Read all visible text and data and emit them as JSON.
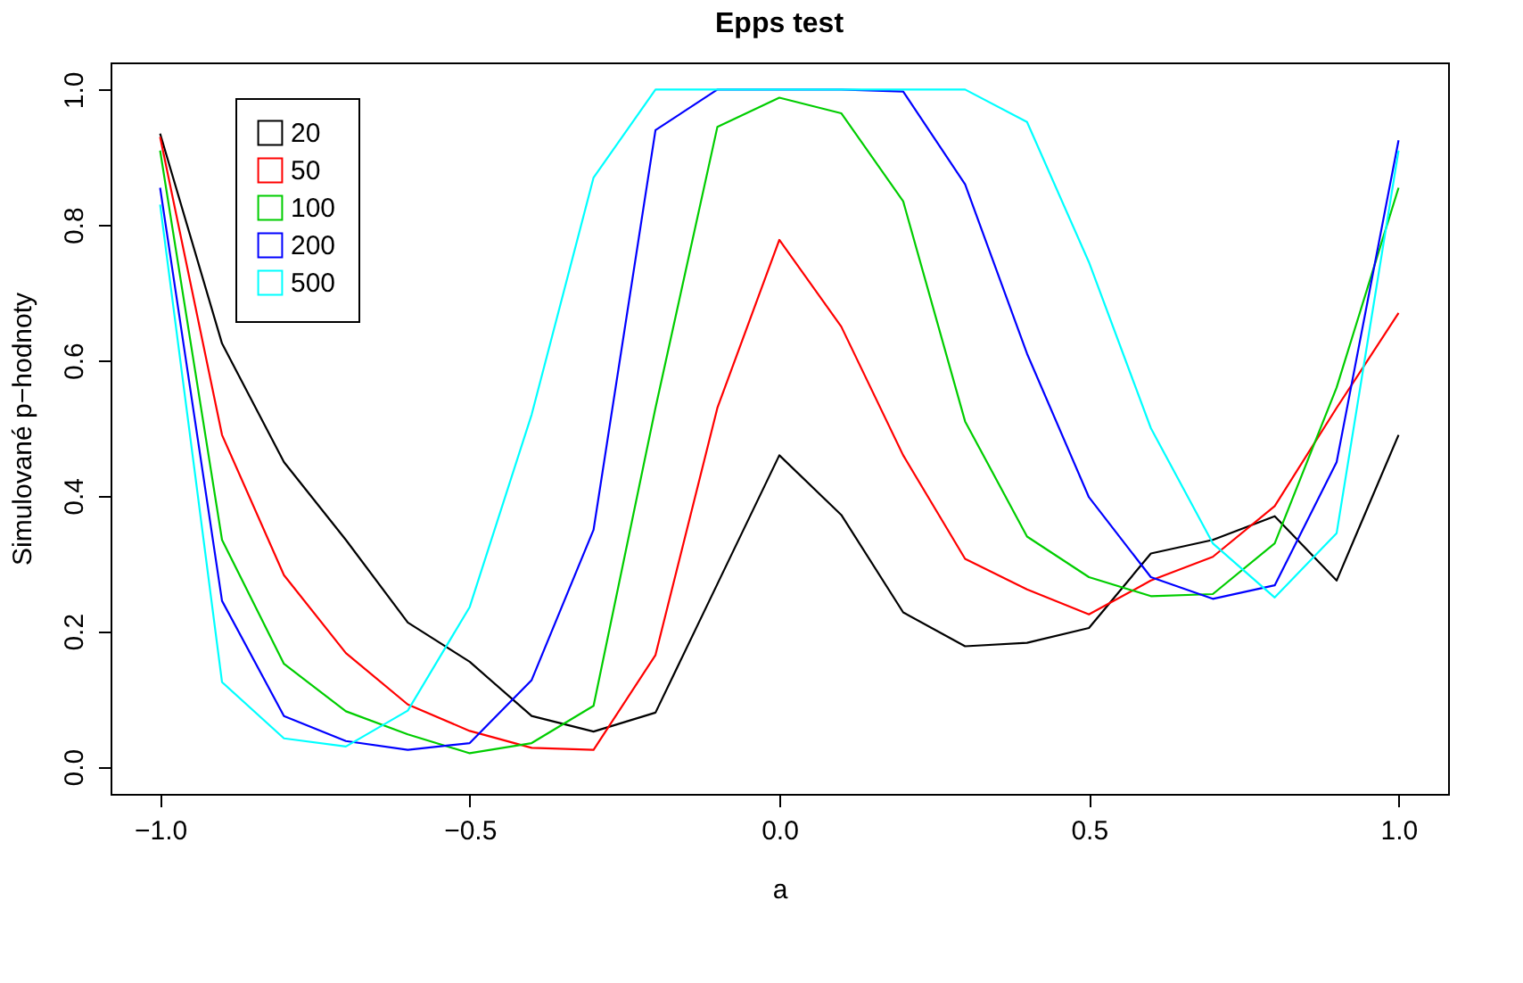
{
  "chart_data": {
    "type": "line",
    "title": "Epps test",
    "xlabel": "a",
    "ylabel": "Simulované p−hodnoty",
    "legend": "top left",
    "grid": false,
    "marker": "none",
    "line_style": "solid",
    "x": [
      -1,
      -0.9,
      -0.8,
      -0.7,
      -0.6,
      -0.5,
      -0.4,
      -0.3,
      -0.2,
      -0.1,
      0,
      0.1,
      0.2,
      0.3,
      0.4,
      0.5,
      0.6,
      0.7,
      0.8,
      0.9,
      1
    ],
    "xlim": [
      -1.08,
      1.08
    ],
    "xticks": [
      {
        "value": -1,
        "label": "−1.0"
      },
      {
        "value": -0.5,
        "label": "−0.5"
      },
      {
        "value": 0,
        "label": "0.0"
      },
      {
        "value": 0.5,
        "label": "0.5"
      },
      {
        "value": 1,
        "label": "1.0"
      }
    ],
    "ylim": [
      -0.04,
      1.04
    ],
    "yticks": [
      {
        "value": 0,
        "label": "0.0"
      },
      {
        "value": 0.2,
        "label": "0.2"
      },
      {
        "value": 0.4,
        "label": "0.4"
      },
      {
        "value": 0.6,
        "label": "0.6"
      },
      {
        "value": 0.8,
        "label": "0.8"
      },
      {
        "value": 1,
        "label": "1.0"
      }
    ],
    "series": [
      {
        "name": "20",
        "color": "#000000",
        "values": [
          0.935,
          0.625,
          0.45,
          0.335,
          0.213,
          0.155,
          0.075,
          0.052,
          0.08,
          0.27,
          0.46,
          0.372,
          0.228,
          0.178,
          0.183,
          0.205,
          0.315,
          0.335,
          0.37,
          0.275,
          0.49
        ]
      },
      {
        "name": "50",
        "color": "#ff0000",
        "values": [
          0.93,
          0.49,
          0.283,
          0.168,
          0.092,
          0.053,
          0.028,
          0.025,
          0.165,
          0.53,
          0.778,
          0.65,
          0.46,
          0.307,
          0.262,
          0.225,
          0.275,
          0.31,
          0.385,
          0.53,
          0.67
        ]
      },
      {
        "name": "100",
        "color": "#00cd00",
        "values": [
          0.91,
          0.335,
          0.152,
          0.082,
          0.048,
          0.02,
          0.035,
          0.09,
          0.53,
          0.945,
          0.988,
          0.965,
          0.835,
          0.51,
          0.34,
          0.28,
          0.252,
          0.255,
          0.33,
          0.56,
          0.855
        ]
      },
      {
        "name": "200",
        "color": "#0000ff",
        "values": [
          0.855,
          0.245,
          0.075,
          0.038,
          0.025,
          0.035,
          0.128,
          0.35,
          0.94,
          1,
          1,
          1,
          0.997,
          0.86,
          0.61,
          0.398,
          0.28,
          0.248,
          0.268,
          0.45,
          0.925
        ]
      },
      {
        "name": "500",
        "color": "#00ffff",
        "values": [
          0.83,
          0.125,
          0.042,
          0.03,
          0.083,
          0.236,
          0.52,
          0.87,
          1,
          1,
          1,
          1,
          1,
          1,
          0.952,
          0.745,
          0.5,
          0.33,
          0.25,
          0.345,
          0.91
        ]
      }
    ]
  }
}
